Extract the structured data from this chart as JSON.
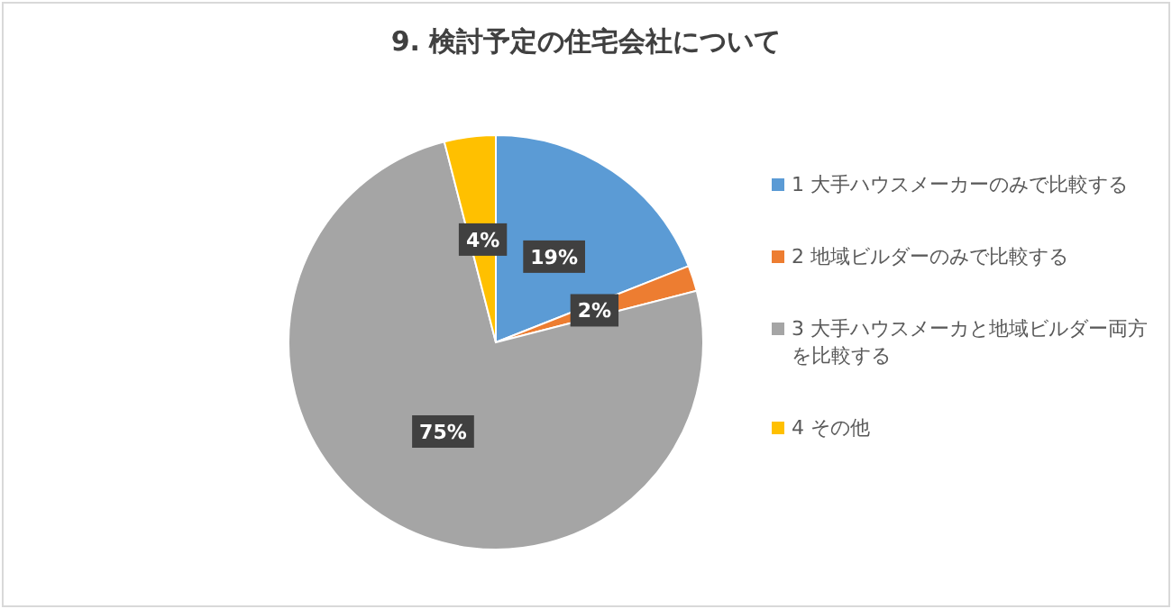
{
  "chart_data": {
    "type": "pie",
    "title": "9. 検討予定の住宅会社について",
    "categories": [
      "1 大手ハウスメーカーのみで比較する",
      "2 地域ビルダーのみで比較する",
      "3 大手ハウスメーカと地域ビルダー両方を比較する",
      "4 その他"
    ],
    "values": [
      19,
      2,
      75,
      4
    ],
    "colors": [
      "#5b9bd5",
      "#ed7d31",
      "#a5a5a5",
      "#ffc000"
    ],
    "value_labels": [
      "19%",
      "2%",
      "75%",
      "4%"
    ],
    "legend": "right"
  }
}
